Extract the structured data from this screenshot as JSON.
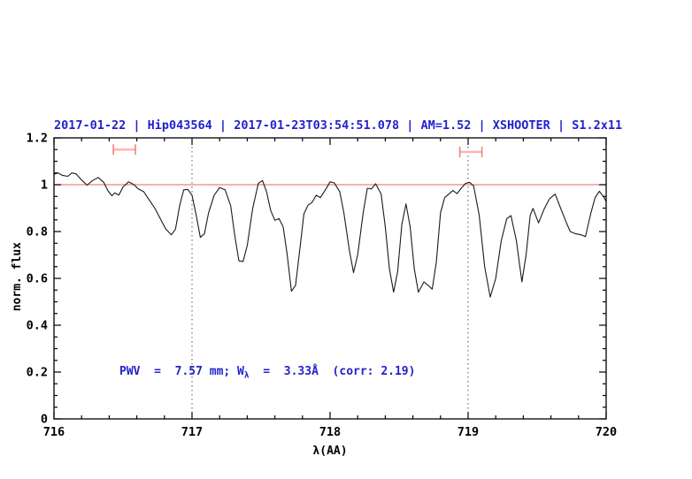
{
  "figure": {
    "title": "2017-01-22 | Hip043564 | 2017-01-23T03:54:51.078 | AM=1.52 | XSHOOTER | S1.2x11",
    "annotation": {
      "prefix": "PWV  =  7.57 mm; W",
      "sub": "λ",
      "suffix": "  =  3.33Å  (corr: 2.19)"
    }
  },
  "chart_data": {
    "type": "line",
    "title": "2017-01-22 | Hip043564 | 2017-01-23T03:54:51.078 | AM=1.52 | XSHOOTER | S1.2x11",
    "xlabel": "λ(AA)",
    "ylabel": "norm. flux",
    "xlim": [
      716,
      720
    ],
    "ylim": [
      0,
      1.2
    ],
    "grid": "off",
    "legend": "none",
    "x_ticks": [
      {
        "v": 716,
        "label": "716"
      },
      {
        "v": 717,
        "label": "717"
      },
      {
        "v": 718,
        "label": "718"
      },
      {
        "v": 719,
        "label": "719"
      },
      {
        "v": 720,
        "label": "720"
      }
    ],
    "y_ticks": [
      {
        "v": 0,
        "label": "0"
      },
      {
        "v": 0.2,
        "label": "0.2"
      },
      {
        "v": 0.4,
        "label": "0.4"
      },
      {
        "v": 0.6,
        "label": "0.6"
      },
      {
        "v": 0.8,
        "label": "0.8"
      },
      {
        "v": 1,
        "label": "1"
      },
      {
        "v": 1.2,
        "label": "1.2"
      }
    ],
    "x_minor_step": 0.2,
    "y_minor_step": 0.05,
    "continuum_line_y": 1.0,
    "dotted_vlines_x": [
      717,
      719
    ],
    "band_markers": [
      {
        "x_from": 716.43,
        "x_to": 716.59,
        "y": 1.15
      },
      {
        "x_from": 718.94,
        "x_to": 719.1,
        "y": 1.14
      }
    ],
    "annotation_text": "PWV = 7.57 mm; W_λ = 3.33Å (corr: 2.19)",
    "colors": {
      "accent_blue": "#2222cc",
      "continuum": "#f08080",
      "marker": "#ef8383",
      "marker_light": "#ffb3b3",
      "curve": "#1a1a1a",
      "frame": "#000000",
      "gridline": "#555555"
    },
    "series": [
      {
        "name": "telluric spectrum",
        "points": [
          [
            716.0,
            1.045
          ],
          [
            716.03,
            1.05
          ],
          [
            716.06,
            1.04
          ],
          [
            716.1,
            1.036
          ],
          [
            716.13,
            1.05
          ],
          [
            716.16,
            1.046
          ],
          [
            716.2,
            1.02
          ],
          [
            716.24,
            0.998
          ],
          [
            716.28,
            1.018
          ],
          [
            716.32,
            1.031
          ],
          [
            716.36,
            1.01
          ],
          [
            716.39,
            0.975
          ],
          [
            716.42,
            0.953
          ],
          [
            716.44,
            0.965
          ],
          [
            716.47,
            0.956
          ],
          [
            716.5,
            0.99
          ],
          [
            716.54,
            1.012
          ],
          [
            716.58,
            1.0
          ],
          [
            716.61,
            0.982
          ],
          [
            716.65,
            0.97
          ],
          [
            716.69,
            0.935
          ],
          [
            716.73,
            0.9
          ],
          [
            716.77,
            0.855
          ],
          [
            716.81,
            0.81
          ],
          [
            716.85,
            0.786
          ],
          [
            716.88,
            0.81
          ],
          [
            716.91,
            0.91
          ],
          [
            716.94,
            0.978
          ],
          [
            716.97,
            0.98
          ],
          [
            717.0,
            0.955
          ],
          [
            717.03,
            0.87
          ],
          [
            717.06,
            0.775
          ],
          [
            717.09,
            0.79
          ],
          [
            717.12,
            0.88
          ],
          [
            717.16,
            0.955
          ],
          [
            717.2,
            0.988
          ],
          [
            717.24,
            0.978
          ],
          [
            717.28,
            0.91
          ],
          [
            717.31,
            0.78
          ],
          [
            717.34,
            0.675
          ],
          [
            717.37,
            0.672
          ],
          [
            717.4,
            0.74
          ],
          [
            717.44,
            0.9
          ],
          [
            717.48,
            1.005
          ],
          [
            717.51,
            1.018
          ],
          [
            717.54,
            0.97
          ],
          [
            717.57,
            0.89
          ],
          [
            717.6,
            0.848
          ],
          [
            717.63,
            0.855
          ],
          [
            717.66,
            0.82
          ],
          [
            717.69,
            0.7
          ],
          [
            717.72,
            0.545
          ],
          [
            717.75,
            0.57
          ],
          [
            717.78,
            0.72
          ],
          [
            717.81,
            0.875
          ],
          [
            717.84,
            0.912
          ],
          [
            717.87,
            0.925
          ],
          [
            717.9,
            0.955
          ],
          [
            717.93,
            0.945
          ],
          [
            717.97,
            0.982
          ],
          [
            718.0,
            1.012
          ],
          [
            718.03,
            1.008
          ],
          [
            718.07,
            0.97
          ],
          [
            718.1,
            0.88
          ],
          [
            718.14,
            0.72
          ],
          [
            718.17,
            0.625
          ],
          [
            718.2,
            0.7
          ],
          [
            718.24,
            0.88
          ],
          [
            718.27,
            0.985
          ],
          [
            718.3,
            0.982
          ],
          [
            718.33,
            1.004
          ],
          [
            718.37,
            0.96
          ],
          [
            718.4,
            0.82
          ],
          [
            718.43,
            0.64
          ],
          [
            718.46,
            0.541
          ],
          [
            718.49,
            0.63
          ],
          [
            718.52,
            0.83
          ],
          [
            718.55,
            0.918
          ],
          [
            718.58,
            0.82
          ],
          [
            718.61,
            0.64
          ],
          [
            718.64,
            0.541
          ],
          [
            718.68,
            0.585
          ],
          [
            718.71,
            0.57
          ],
          [
            718.74,
            0.554
          ],
          [
            718.77,
            0.67
          ],
          [
            718.8,
            0.88
          ],
          [
            718.83,
            0.945
          ],
          [
            718.86,
            0.96
          ],
          [
            718.89,
            0.975
          ],
          [
            718.92,
            0.962
          ],
          [
            718.95,
            0.985
          ],
          [
            718.98,
            1.005
          ],
          [
            719.01,
            1.01
          ],
          [
            719.04,
            0.995
          ],
          [
            719.08,
            0.87
          ],
          [
            719.12,
            0.65
          ],
          [
            719.16,
            0.52
          ],
          [
            719.2,
            0.6
          ],
          [
            719.24,
            0.76
          ],
          [
            719.28,
            0.855
          ],
          [
            719.31,
            0.868
          ],
          [
            719.35,
            0.76
          ],
          [
            719.39,
            0.585
          ],
          [
            719.42,
            0.7
          ],
          [
            719.45,
            0.87
          ],
          [
            719.47,
            0.899
          ],
          [
            719.51,
            0.837
          ],
          [
            719.55,
            0.895
          ],
          [
            719.59,
            0.94
          ],
          [
            719.63,
            0.96
          ],
          [
            719.67,
            0.9
          ],
          [
            719.71,
            0.84
          ],
          [
            719.74,
            0.8
          ],
          [
            719.78,
            0.79
          ],
          [
            719.82,
            0.786
          ],
          [
            719.85,
            0.778
          ],
          [
            719.89,
            0.88
          ],
          [
            719.92,
            0.945
          ],
          [
            719.95,
            0.972
          ],
          [
            719.98,
            0.95
          ],
          [
            720.0,
            0.928
          ]
        ]
      }
    ]
  }
}
